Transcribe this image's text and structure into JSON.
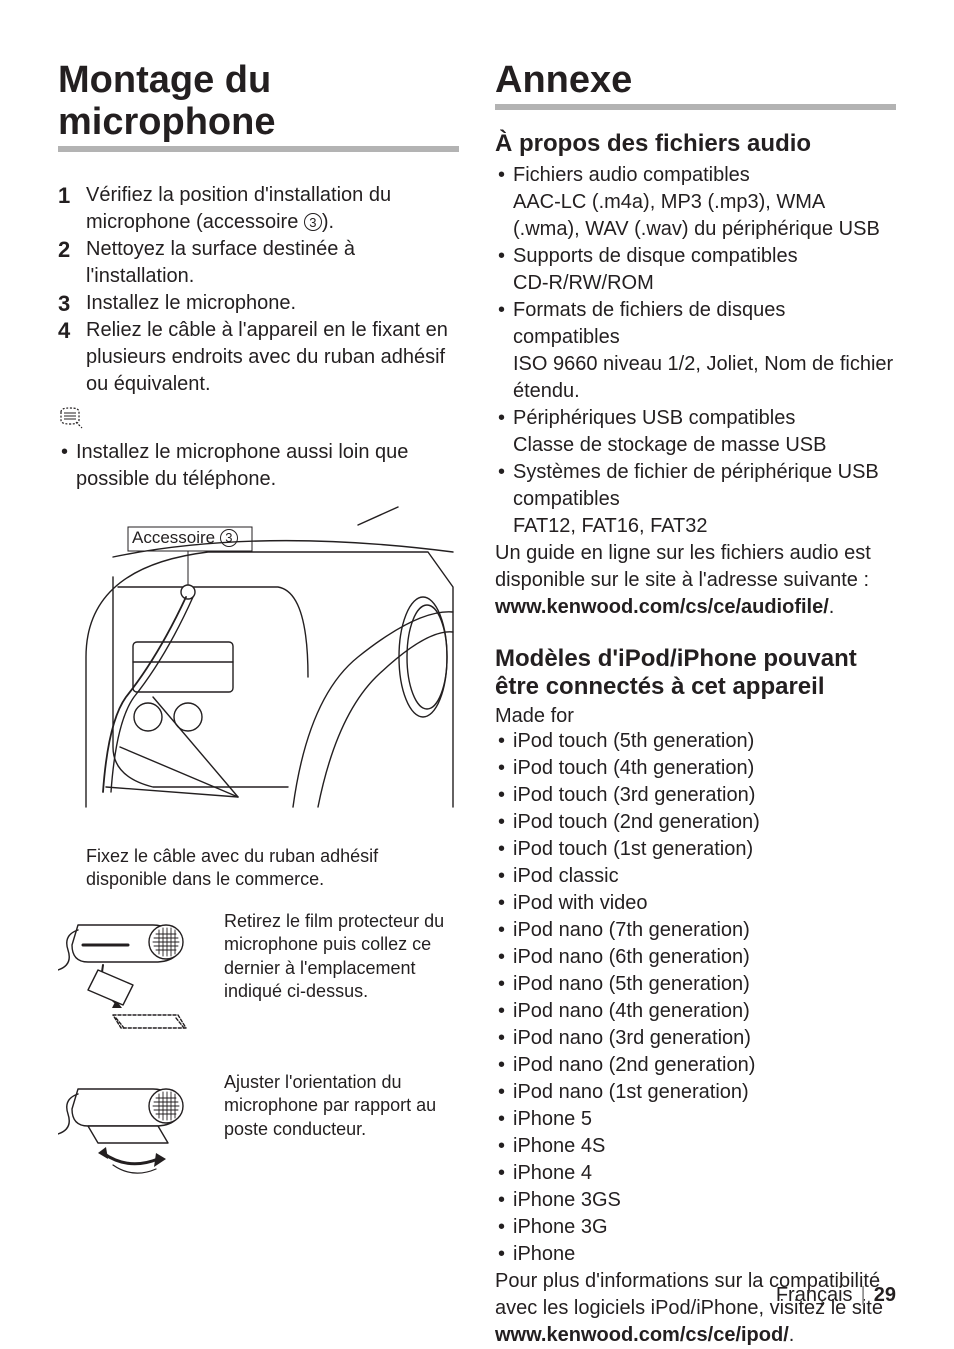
{
  "left": {
    "heading": "Montage du microphone",
    "steps": [
      {
        "num": "1",
        "text_pre": "Vérifiez la position d'installation du microphone (accessoire ",
        "circ": "3",
        "text_post": ")."
      },
      {
        "num": "2",
        "text": "Nettoyez la surface destinée à l'installation."
      },
      {
        "num": "3",
        "text": "Installez le microphone."
      },
      {
        "num": "4",
        "text": "Reliez le câble à l'appareil en le fixant en plusieurs endroits avec du ruban adhésif ou équivalent."
      }
    ],
    "note_bullet": "Installez le microphone aussi loin que possible du téléphone.",
    "fig1_label_pre": "Accessoire ",
    "fig1_label_circ": "3",
    "fig1_caption": "Fixez le câble avec du ruban adhésif disponible dans le commerce.",
    "fig2_text": "Retirez le film protecteur du microphone puis collez ce dernier à l'emplacement indiqué ci-dessus.",
    "fig3_text": "Ajuster l'orientation du microphone par rapport au poste conducteur."
  },
  "right": {
    "heading": "Annexe",
    "sec1_title": "À propos des fichiers audio",
    "sec1_items": [
      {
        "t": "Fichiers audio compatibles",
        "d": "AAC-LC (.m4a), MP3 (.mp3), WMA (.wma), WAV (.wav) du périphérique USB"
      },
      {
        "t": "Supports de disque compatibles",
        "d": "CD-R/RW/ROM"
      },
      {
        "t": "Formats de fichiers de disques compatibles",
        "d": "ISO 9660 niveau 1/2, Joliet, Nom de fichier étendu."
      },
      {
        "t": "Périphériques USB compatibles",
        "d": "Classe de stockage de masse USB"
      },
      {
        "t": "Systèmes de fichier de périphérique USB compatibles",
        "d": "FAT12, FAT16, FAT32"
      }
    ],
    "sec1_para": "Un guide en ligne sur les fichiers audio est disponible sur le site à l'adresse suivante :",
    "sec1_link": "www.kenwood.com/cs/ce/audiofile/",
    "sec1_post": ".",
    "sec2_title": "Modèles d'iPod/iPhone pouvant être connectés à cet appareil",
    "sec2_sub": "Made for",
    "sec2_items": [
      "iPod touch (5th generation)",
      "iPod touch (4th generation)",
      "iPod touch (3rd generation)",
      "iPod touch (2nd generation)",
      "iPod touch (1st generation)",
      "iPod classic",
      "iPod with video",
      "iPod nano (7th generation)",
      "iPod nano (6th generation)",
      "iPod nano (5th generation)",
      "iPod nano (4th generation)",
      "iPod nano (3rd generation)",
      "iPod nano (2nd generation)",
      "iPod nano (1st generation)",
      "iPhone 5",
      "iPhone 4S",
      "iPhone 4",
      "iPhone 3GS",
      "iPhone 3G",
      "iPhone"
    ],
    "sec2_para_pre": "Pour plus d'informations sur la compatibilité avec les logiciels iPod/iPhone, visitez le site ",
    "sec2_link": "www.kenwood.com/cs/ce/ipod/",
    "sec2_post": "."
  },
  "footer": {
    "lang": "Français",
    "page": "29"
  },
  "colors": {
    "text": "#231f20",
    "rule": "#b3b3b3",
    "bg": "#ffffff"
  }
}
